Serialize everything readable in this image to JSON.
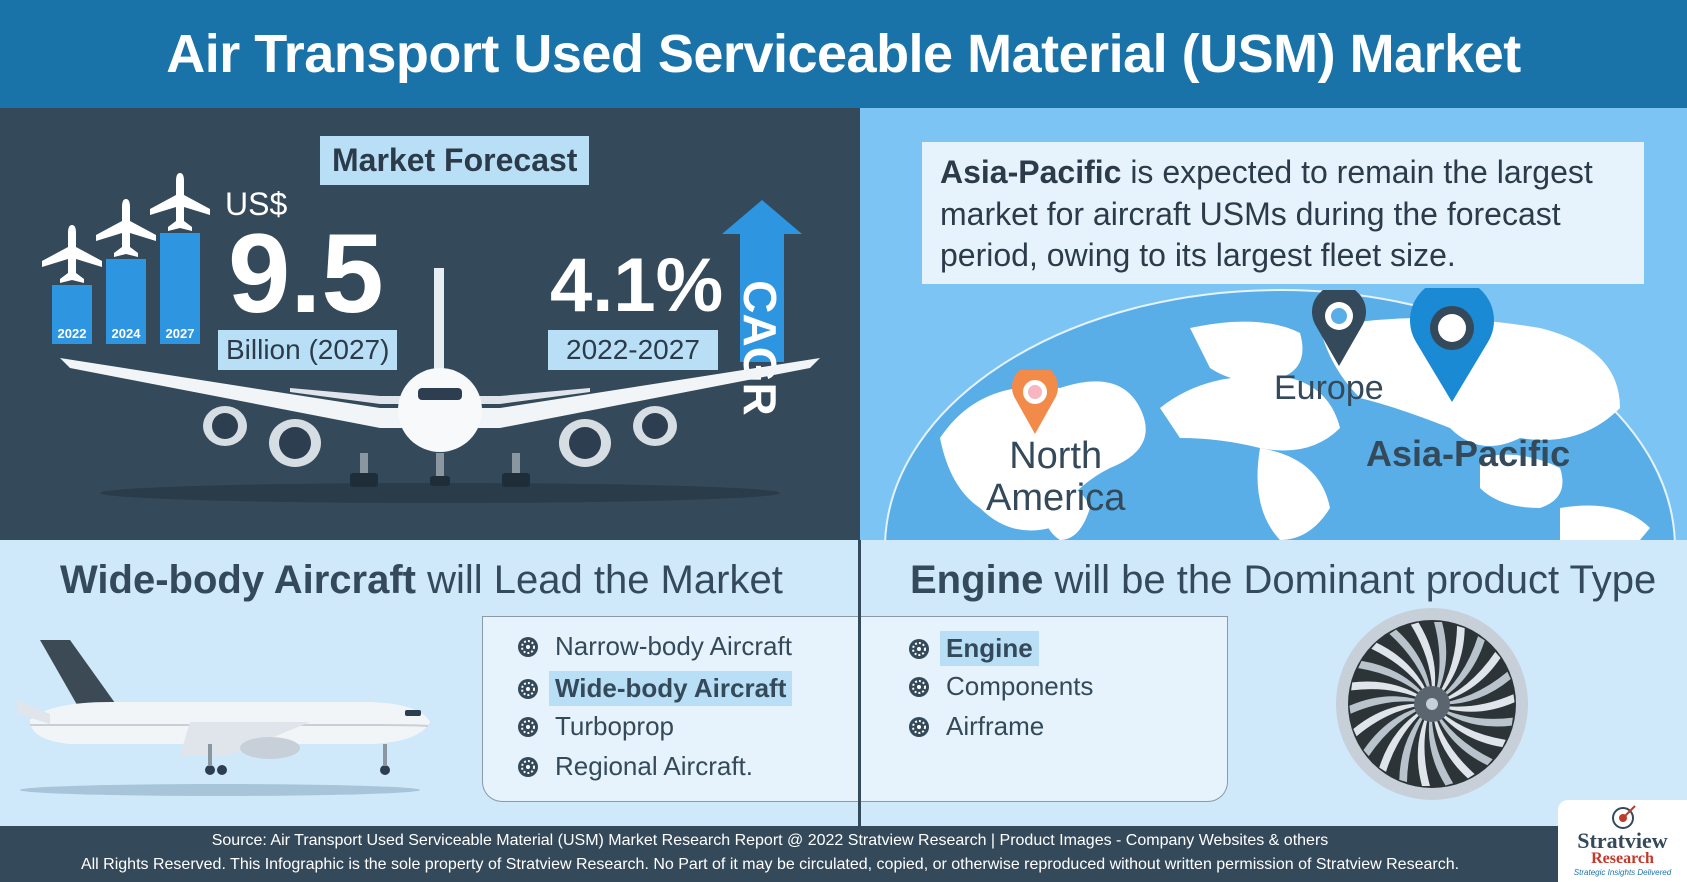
{
  "header": {
    "title": "Air Transport Used Serviceable Material (USM) Market"
  },
  "forecast": {
    "title": "Market Forecast",
    "currency": "US$",
    "value": "9.5",
    "unit": "Billion (2027)",
    "bars": [
      {
        "year": "2022",
        "level": 0.45
      },
      {
        "year": "2024",
        "level": 0.65
      },
      {
        "year": "2027",
        "level": 0.85
      }
    ],
    "cagr_value": "4.1%",
    "cagr_period": "2022-2027",
    "cagr_label": "CAGR"
  },
  "region": {
    "text_bold": "Asia-Pacific",
    "text_rest": " is expected to remain the largest market for aircraft USMs during the forecast period, owing to its largest fleet size.",
    "labels": {
      "north_america_1": "North",
      "north_america_2": "America",
      "europe": "Europe",
      "asia_pacific": "Asia-Pacific"
    }
  },
  "aircraft": {
    "title_bold": "Wide-body Aircraft",
    "title_rest": " will Lead the Market",
    "items": [
      "Narrow-body Aircraft",
      "Wide-body Aircraft",
      "Turboprop",
      "Regional Aircraft."
    ],
    "highlight_index": 1
  },
  "product": {
    "title_bold": "Engine",
    "title_rest": " will be the Dominant product Type",
    "items": [
      "Engine",
      "Components",
      "Airframe"
    ],
    "highlight_index": 0
  },
  "footer": {
    "line1": "Source: Air Transport Used Serviceable Material (USM) Market Research Report @ 2022 Stratview Research | Product Images  - Company Websites & others",
    "line2": "All Rights Reserved. This Infographic is the sole property of Stratview Research. No Part of it may be circulated, copied, or otherwise reproduced without written permission of Stratview Research."
  },
  "logo": {
    "name": "Stratview",
    "sub": "Research",
    "tagline": "Strategic Insights Delivered"
  },
  "colors": {
    "header": "#1a73a8",
    "dark": "#34495a",
    "accent": "#2e95e0",
    "light": "#cfe9fb",
    "map_bg": "#7cc4f4"
  }
}
